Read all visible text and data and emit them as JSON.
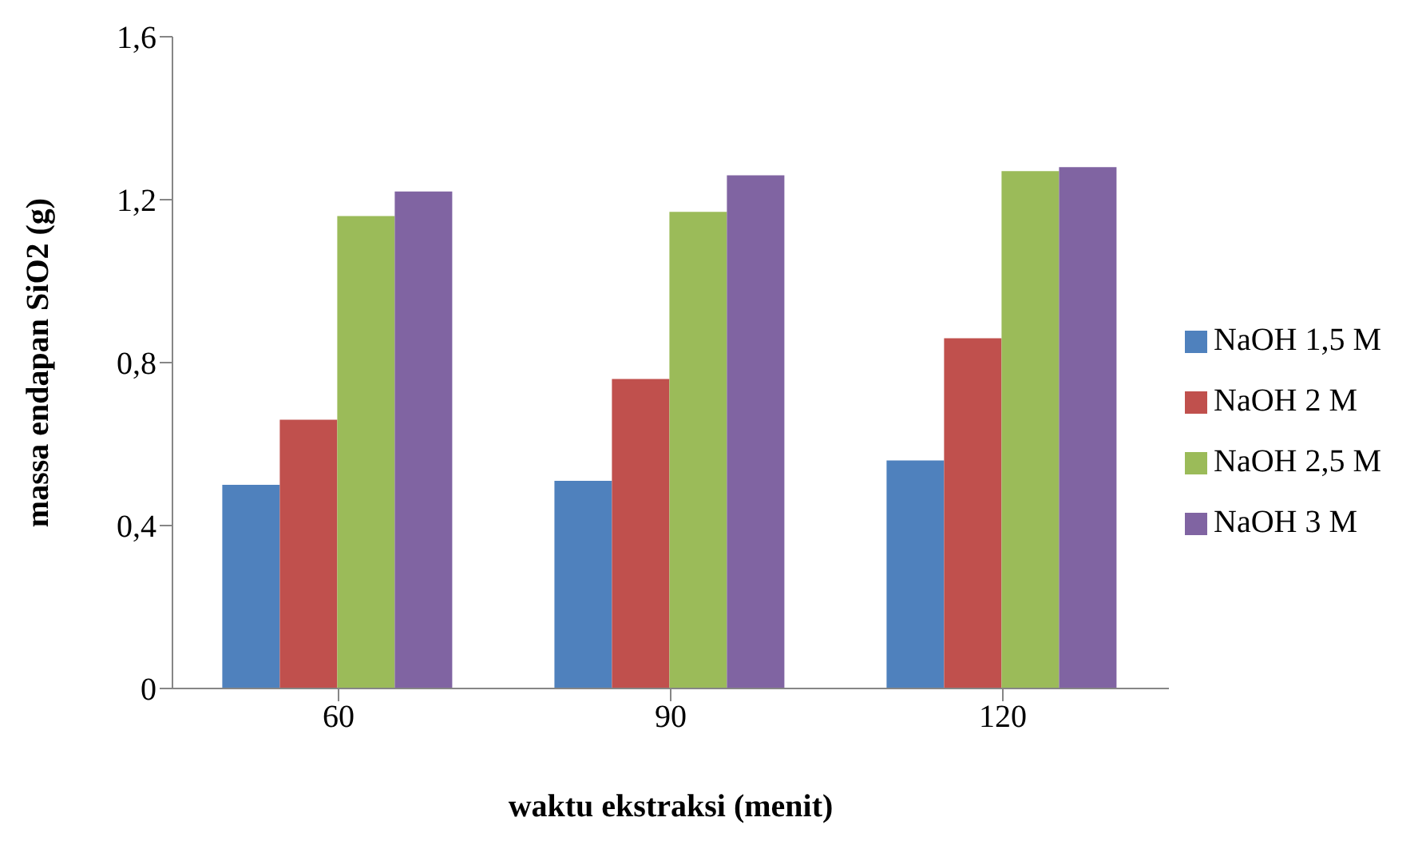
{
  "chart_data": {
    "type": "bar",
    "xlabel": "waktu ekstraksi (menit)",
    "ylabel": "massa endapan SiO2 (g)",
    "categories": [
      "60",
      "90",
      "120"
    ],
    "series": [
      {
        "name": "NaOH 1,5 M",
        "color": "#4f81bd",
        "values": [
          0.5,
          0.51,
          0.56
        ]
      },
      {
        "name": "NaOH 2 M",
        "color": "#c0504d",
        "values": [
          0.66,
          0.76,
          0.86
        ]
      },
      {
        "name": "NaOH 2,5 M",
        "color": "#9bbb59",
        "values": [
          1.16,
          1.17,
          1.27
        ]
      },
      {
        "name": "NaOH 3 M",
        "color": "#8064a2",
        "values": [
          1.22,
          1.26,
          1.28
        ]
      }
    ],
    "ylim": [
      0,
      1.6
    ],
    "yticks": [
      0,
      {
        "value": 0.4,
        "label": "0,4"
      },
      {
        "value": 0.8,
        "label": "0,8"
      },
      {
        "value": 1.2,
        "label": "1,2"
      },
      {
        "value": 1.6,
        "label": "1,6"
      }
    ],
    "grid": false,
    "legend": "right"
  }
}
